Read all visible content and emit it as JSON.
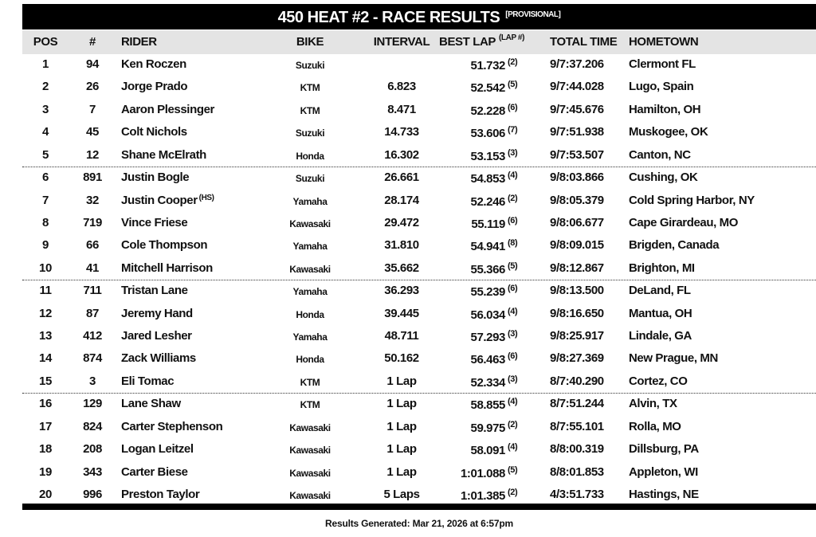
{
  "header": {
    "title": "450 HEAT #2 - RACE RESULTS",
    "title_note": "[PROVISIONAL]"
  },
  "table": {
    "columns": {
      "pos": "POS",
      "num": "#",
      "rider": "RIDER",
      "bike": "BIKE",
      "interval": "INTERVAL",
      "best_lap": "BEST LAP",
      "lap": "(LAP #)",
      "total_time": "TOTAL TIME",
      "hometown": "HOMETOWN"
    },
    "rows": [
      {
        "pos": "1",
        "num": "94",
        "rider": "Ken Roczen",
        "bike": "Suzuki",
        "best_lap": "51.732",
        "lap": "(2)",
        "total_time": "9/7:37.206",
        "hometown": "Clermont FL"
      },
      {
        "pos": "2",
        "num": "26",
        "rider": "Jorge Prado",
        "bike": "KTM",
        "interval": "6.823",
        "best_lap": "52.542",
        "lap": "(5)",
        "total_time": "9/7:44.028",
        "hometown": "Lugo, Spain"
      },
      {
        "pos": "3",
        "num": "7",
        "rider": "Aaron Plessinger",
        "bike": "KTM",
        "interval": "8.471",
        "best_lap": "52.228",
        "lap": "(6)",
        "total_time": "9/7:45.676",
        "hometown": "Hamilton, OH"
      },
      {
        "pos": "4",
        "num": "45",
        "rider": "Colt Nichols",
        "bike": "Suzuki",
        "interval": "14.733",
        "best_lap": "53.606",
        "lap": "(7)",
        "total_time": "9/7:51.938",
        "hometown": "Muskogee, OK"
      },
      {
        "pos": "5",
        "num": "12",
        "rider": "Shane McElrath",
        "bike": "Honda",
        "interval": "16.302",
        "best_lap": "53.153",
        "lap": "(3)",
        "total_time": "9/7:53.507",
        "hometown": "Canton, NC"
      },
      {
        "pos": "6",
        "num": "891",
        "rider": "Justin Bogle",
        "bike": "Suzuki",
        "interval": "26.661",
        "best_lap": "54.853",
        "lap": "(4)",
        "total_time": "9/8:03.866",
        "hometown": "Cushing, OK"
      },
      {
        "pos": "7",
        "num": "32",
        "rider": "Justin Cooper",
        "rider_note": "(HS)",
        "bike": "Yamaha",
        "interval": "28.174",
        "best_lap": "52.246",
        "lap": "(2)",
        "total_time": "9/8:05.379",
        "hometown": "Cold Spring Harbor, NY"
      },
      {
        "pos": "8",
        "num": "719",
        "rider": "Vince Friese",
        "bike": "Kawasaki",
        "interval": "29.472",
        "best_lap": "55.119",
        "lap": "(6)",
        "total_time": "9/8:06.677",
        "hometown": "Cape Girardeau, MO"
      },
      {
        "pos": "9",
        "num": "66",
        "rider": "Cole Thompson",
        "bike": "Yamaha",
        "interval": "31.810",
        "best_lap": "54.941",
        "lap": "(8)",
        "total_time": "9/8:09.015",
        "hometown": "Brigden, Canada"
      },
      {
        "pos": "10",
        "num": "41",
        "rider": "Mitchell Harrison",
        "bike": "Kawasaki",
        "interval": "35.662",
        "best_lap": "55.366",
        "lap": "(5)",
        "total_time": "9/8:12.867",
        "hometown": "Brighton, MI"
      },
      {
        "pos": "11",
        "num": "711",
        "rider": "Tristan Lane",
        "bike": "Yamaha",
        "interval": "36.293",
        "best_lap": "55.239",
        "lap": "(6)",
        "total_time": "9/8:13.500",
        "hometown": "DeLand, FL"
      },
      {
        "pos": "12",
        "num": "87",
        "rider": "Jeremy Hand",
        "bike": "Honda",
        "interval": "39.445",
        "best_lap": "56.034",
        "lap": "(4)",
        "total_time": "9/8:16.650",
        "hometown": "Mantua, OH"
      },
      {
        "pos": "13",
        "num": "412",
        "rider": "Jared Lesher",
        "bike": "Yamaha",
        "interval": "48.711",
        "best_lap": "57.293",
        "lap": "(3)",
        "total_time": "9/8:25.917",
        "hometown": "Lindale, GA"
      },
      {
        "pos": "14",
        "num": "874",
        "rider": "Zack Williams",
        "bike": "Honda",
        "interval": "50.162",
        "best_lap": "56.463",
        "lap": "(6)",
        "total_time": "9/8:27.369",
        "hometown": "New Prague, MN"
      },
      {
        "pos": "15",
        "num": "3",
        "rider": "Eli Tomac",
        "bike": "KTM",
        "interval": "1 Lap",
        "best_lap": "52.334",
        "lap": "(3)",
        "total_time": "8/7:40.290",
        "hometown": "Cortez, CO"
      },
      {
        "pos": "16",
        "num": "129",
        "rider": "Lane Shaw",
        "bike": "KTM",
        "interval": "1 Lap",
        "best_lap": "58.855",
        "lap": "(4)",
        "total_time": "8/7:51.244",
        "hometown": "Alvin, TX"
      },
      {
        "pos": "17",
        "num": "824",
        "rider": "Carter Stephenson",
        "bike": "Kawasaki",
        "interval": "1 Lap",
        "best_lap": "59.975",
        "lap": "(2)",
        "total_time": "8/7:55.101",
        "hometown": "Rolla, MO"
      },
      {
        "pos": "18",
        "num": "208",
        "rider": "Logan Leitzel",
        "bike": "Kawasaki",
        "interval": "1 Lap",
        "best_lap": "58.091",
        "lap": "(4)",
        "total_time": "8/8:00.319",
        "hometown": "Dillsburg, PA"
      },
      {
        "pos": "19",
        "num": "343",
        "rider": "Carter Biese",
        "bike": "Kawasaki",
        "interval": "1 Lap",
        "best_lap": "1:01.088",
        "lap": "(5)",
        "total_time": "8/8:01.853",
        "hometown": "Appleton, WI"
      },
      {
        "pos": "20",
        "num": "996",
        "rider": "Preston Taylor",
        "bike": "Kawasaki",
        "interval": "5 Laps",
        "best_lap": "1:01.385",
        "lap": "(2)",
        "total_time": "4/3:51.733",
        "hometown": "Hastings, NE"
      }
    ]
  },
  "footer": "Results Generated: Mar 21, 2026 at 6:57pm"
}
